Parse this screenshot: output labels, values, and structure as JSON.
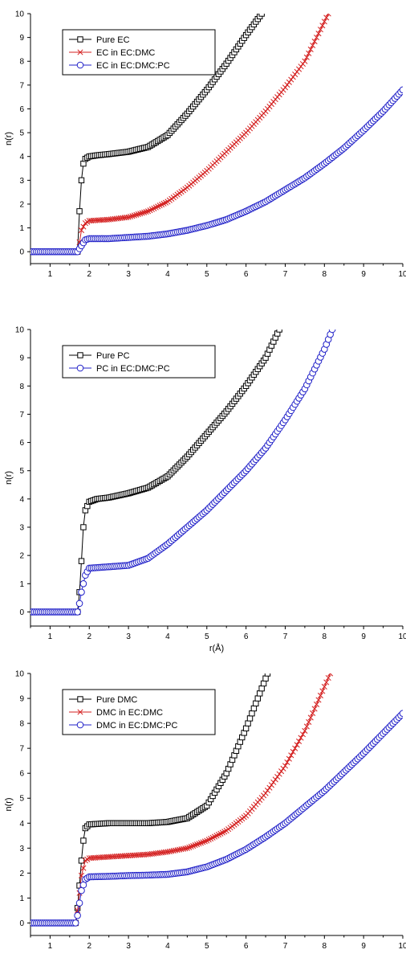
{
  "colors": {
    "black": "#000000",
    "red": "#d42020",
    "blue": "#2020c8"
  },
  "chart_data": [
    {
      "type": "line",
      "title": "",
      "xlabel": "",
      "ylabel": "n(r)",
      "xlim": [
        0.5,
        10
      ],
      "ylim": [
        -0.5,
        10
      ],
      "xticks": [
        1,
        2,
        3,
        4,
        5,
        6,
        7,
        8,
        9,
        10
      ],
      "yticks": [
        0,
        1,
        2,
        3,
        4,
        5,
        6,
        7,
        8,
        9,
        10
      ],
      "grid": false,
      "legend_position": "top-left",
      "series": [
        {
          "name": "Pure EC",
          "color": "#000000",
          "marker": "square",
          "x": [
            0.5,
            1.7,
            1.75,
            1.8,
            1.85,
            1.9,
            2.0,
            2.2,
            2.5,
            3.0,
            3.5,
            4.0,
            4.5,
            5.0,
            5.5,
            6.0,
            6.4
          ],
          "y": [
            0,
            0,
            1.7,
            3.0,
            3.7,
            3.9,
            4.0,
            4.05,
            4.1,
            4.2,
            4.4,
            4.9,
            5.8,
            6.8,
            7.9,
            9.1,
            10.0
          ]
        },
        {
          "name": "EC in EC:DMC",
          "color": "#d42020",
          "marker": "cross",
          "x": [
            0.5,
            1.7,
            1.75,
            1.8,
            1.9,
            2.0,
            2.5,
            3.0,
            3.5,
            4.0,
            4.5,
            5.0,
            5.5,
            6.0,
            6.5,
            7.0,
            7.5,
            8.1
          ],
          "y": [
            0,
            0,
            0.4,
            0.9,
            1.2,
            1.3,
            1.35,
            1.45,
            1.7,
            2.1,
            2.7,
            3.4,
            4.2,
            5.0,
            5.9,
            6.9,
            8.0,
            10.0
          ]
        },
        {
          "name": "EC in EC:DMC:PC",
          "color": "#2020c8",
          "marker": "circle",
          "x": [
            0.5,
            1.7,
            1.8,
            1.9,
            2.0,
            2.5,
            3.0,
            3.5,
            4.0,
            4.5,
            5.0,
            5.5,
            6.0,
            6.5,
            7.0,
            7.5,
            8.0,
            8.5,
            9.0,
            9.5,
            10.0
          ],
          "y": [
            0,
            0,
            0.25,
            0.5,
            0.55,
            0.55,
            0.6,
            0.65,
            0.75,
            0.9,
            1.1,
            1.35,
            1.7,
            2.1,
            2.6,
            3.1,
            3.7,
            4.35,
            5.1,
            5.9,
            6.8
          ]
        }
      ]
    },
    {
      "type": "line",
      "title": "",
      "xlabel": "r(Å)",
      "ylabel": "n(r)",
      "xlim": [
        0.5,
        10
      ],
      "ylim": [
        -0.5,
        10
      ],
      "xticks": [
        1,
        2,
        3,
        4,
        5,
        6,
        7,
        8,
        9,
        10
      ],
      "yticks": [
        0,
        1,
        2,
        3,
        4,
        5,
        6,
        7,
        8,
        9,
        10
      ],
      "grid": false,
      "legend_position": "top-left",
      "series": [
        {
          "name": "Pure PC",
          "color": "#000000",
          "marker": "square",
          "x": [
            0.5,
            1.7,
            1.75,
            1.8,
            1.85,
            1.9,
            2.0,
            2.2,
            2.5,
            3.0,
            3.5,
            4.0,
            4.5,
            5.0,
            5.5,
            6.0,
            6.5,
            6.85
          ],
          "y": [
            0,
            0,
            0.7,
            1.8,
            3.0,
            3.6,
            3.9,
            4.0,
            4.05,
            4.2,
            4.4,
            4.8,
            5.5,
            6.3,
            7.1,
            8.0,
            9.0,
            10.0
          ]
        },
        {
          "name": "PC in EC:DMC:PC",
          "color": "#2020c8",
          "marker": "circle",
          "x": [
            0.5,
            1.7,
            1.75,
            1.8,
            1.9,
            2.0,
            2.5,
            3.0,
            3.5,
            4.0,
            4.5,
            5.0,
            5.5,
            6.0,
            6.5,
            7.0,
            7.5,
            8.0,
            8.2
          ],
          "y": [
            0,
            0,
            0.3,
            0.7,
            1.3,
            1.55,
            1.6,
            1.65,
            1.9,
            2.4,
            3.0,
            3.6,
            4.3,
            5.0,
            5.8,
            6.8,
            7.9,
            9.3,
            10.0
          ]
        }
      ]
    },
    {
      "type": "line",
      "title": "",
      "xlabel": "",
      "ylabel": "n(r)",
      "xlim": [
        0.5,
        10
      ],
      "ylim": [
        -0.5,
        10
      ],
      "xticks": [
        1,
        2,
        3,
        4,
        5,
        6,
        7,
        8,
        9,
        10
      ],
      "yticks": [
        0,
        1,
        2,
        3,
        4,
        5,
        6,
        7,
        8,
        9,
        10
      ],
      "grid": false,
      "legend_position": "top-left",
      "series": [
        {
          "name": "Pure DMC",
          "color": "#000000",
          "marker": "square",
          "x": [
            0.5,
            1.65,
            1.7,
            1.75,
            1.8,
            1.85,
            1.9,
            2.0,
            2.5,
            3.0,
            3.5,
            4.0,
            4.5,
            5.0,
            5.5,
            6.0,
            6.55
          ],
          "y": [
            0,
            0,
            0.6,
            1.5,
            2.5,
            3.3,
            3.8,
            3.95,
            4.0,
            4.0,
            4.0,
            4.05,
            4.2,
            4.7,
            6.0,
            7.8,
            10.0
          ]
        },
        {
          "name": "DMC in EC:DMC",
          "color": "#d42020",
          "marker": "cross",
          "x": [
            0.5,
            1.65,
            1.7,
            1.75,
            1.8,
            1.9,
            2.0,
            2.5,
            3.0,
            3.5,
            4.0,
            4.5,
            5.0,
            5.5,
            6.0,
            6.5,
            7.0,
            7.5,
            8.15
          ],
          "y": [
            0,
            0,
            0.5,
            1.2,
            1.9,
            2.5,
            2.6,
            2.65,
            2.7,
            2.75,
            2.85,
            3.0,
            3.3,
            3.7,
            4.3,
            5.2,
            6.3,
            7.7,
            10.0
          ]
        },
        {
          "name": "DMC in EC:DMC:PC",
          "color": "#2020c8",
          "marker": "circle",
          "x": [
            0.5,
            1.65,
            1.7,
            1.75,
            1.8,
            1.9,
            2.0,
            2.5,
            3.0,
            3.5,
            4.0,
            4.5,
            5.0,
            5.5,
            6.0,
            6.5,
            7.0,
            7.5,
            8.0,
            8.5,
            9.0,
            9.5,
            10.0
          ],
          "y": [
            0,
            0,
            0.3,
            0.8,
            1.3,
            1.75,
            1.85,
            1.87,
            1.9,
            1.92,
            1.95,
            2.05,
            2.25,
            2.55,
            2.95,
            3.45,
            4.0,
            4.65,
            5.3,
            6.05,
            6.8,
            7.6,
            8.4
          ]
        }
      ]
    }
  ]
}
